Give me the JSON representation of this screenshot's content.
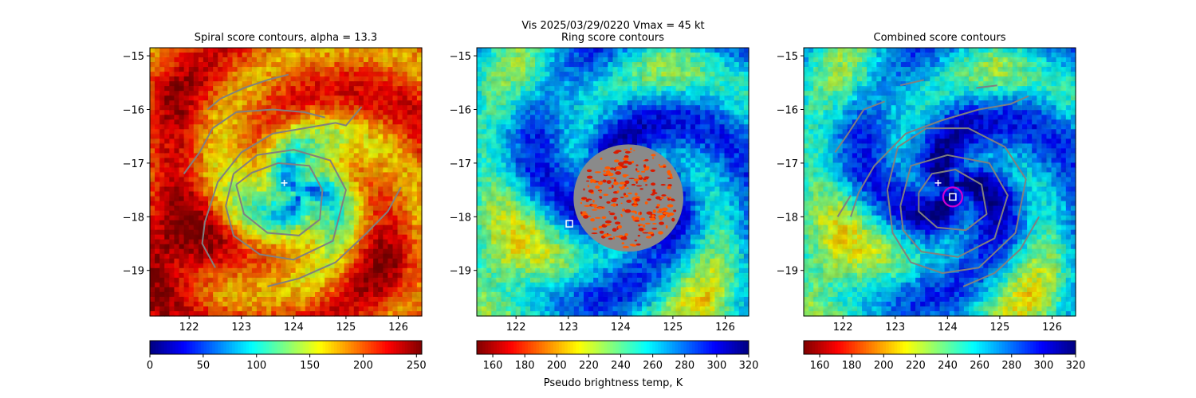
{
  "suptitle_line1": "Vis  2025/03/29/0220    Vmax = 45 kt",
  "colorbar_label": "Pseudo brightness temp, K",
  "chart_data": [
    {
      "type": "heatmap",
      "title": "Spiral score contours, alpha = 13.3",
      "xlim": [
        121.25,
        126.45
      ],
      "ylim": [
        -19.85,
        -14.85
      ],
      "xticks": [
        122,
        123,
        124,
        125,
        126
      ],
      "xtick_labels": [
        "122",
        "123",
        "124",
        "125",
        "126"
      ],
      "yticks": [
        -15,
        -16,
        -17,
        -18,
        -19
      ],
      "ytick_labels": [
        "−15",
        "−16",
        "−17",
        "−18",
        "−19"
      ],
      "colormap": "jet",
      "cmap_reversed": false,
      "colorbar_range": [
        0,
        255
      ],
      "colorbar_ticks": [
        0,
        50,
        100,
        150,
        200,
        250
      ],
      "colorbar_tick_labels": [
        "0",
        "50",
        "100",
        "150",
        "200",
        "250"
      ],
      "storm_center": {
        "lon": 123.82,
        "lat": -17.37
      },
      "contours": [
        [
          [
            122.9,
            -17.4
          ],
          [
            123.2,
            -17.18
          ],
          [
            123.7,
            -17.0
          ],
          [
            124.3,
            -17.05
          ],
          [
            124.55,
            -17.5
          ],
          [
            124.5,
            -18.05
          ],
          [
            124.1,
            -18.35
          ],
          [
            123.5,
            -18.3
          ],
          [
            123.05,
            -17.95
          ],
          [
            122.9,
            -17.4
          ]
        ],
        [
          [
            122.7,
            -17.8
          ],
          [
            122.85,
            -17.2
          ],
          [
            123.3,
            -16.85
          ],
          [
            124.0,
            -16.75
          ],
          [
            124.7,
            -16.95
          ],
          [
            125.0,
            -17.5
          ],
          [
            124.75,
            -18.45
          ],
          [
            124.0,
            -18.8
          ],
          [
            123.35,
            -18.7
          ],
          [
            122.85,
            -18.35
          ],
          [
            122.7,
            -17.8
          ]
        ],
        [
          [
            122.35,
            -16.0
          ],
          [
            122.6,
            -15.8
          ],
          [
            123.05,
            -15.6
          ],
          [
            123.5,
            -15.45
          ],
          [
            123.9,
            -15.35
          ]
        ],
        [
          [
            121.9,
            -17.2
          ],
          [
            122.2,
            -16.8
          ],
          [
            122.45,
            -16.35
          ],
          [
            122.9,
            -16.05
          ],
          [
            123.6,
            -16.0
          ],
          [
            124.2,
            -16.05
          ],
          [
            124.6,
            -16.15
          ]
        ],
        [
          [
            122.3,
            -18.1
          ],
          [
            122.55,
            -17.35
          ],
          [
            123.0,
            -16.8
          ],
          [
            123.6,
            -16.45
          ],
          [
            124.2,
            -16.35
          ],
          [
            124.8,
            -16.25
          ],
          [
            125.0,
            -16.3
          ],
          [
            125.3,
            -15.95
          ]
        ],
        [
          [
            122.3,
            -18.1
          ],
          [
            122.25,
            -18.5
          ],
          [
            122.5,
            -18.95
          ]
        ],
        [
          [
            123.5,
            -19.3
          ],
          [
            124.1,
            -19.15
          ],
          [
            124.8,
            -18.85
          ],
          [
            125.4,
            -18.3
          ],
          [
            125.8,
            -17.9
          ],
          [
            126.05,
            -17.45
          ]
        ]
      ]
    },
    {
      "type": "heatmap",
      "title": "Ring score contours",
      "xlim": [
        121.25,
        126.45
      ],
      "ylim": [
        -19.85,
        -14.85
      ],
      "xticks": [
        122,
        123,
        124,
        125,
        126
      ],
      "xtick_labels": [
        "122",
        "123",
        "124",
        "125",
        "126"
      ],
      "yticks": [
        -15,
        -16,
        -17,
        -18,
        -19
      ],
      "ytick_labels": [
        "−15",
        "−16",
        "−17",
        "−18",
        "−19"
      ],
      "colormap": "jet_r",
      "cmap_reversed": true,
      "colorbar_range": [
        150,
        320
      ],
      "colorbar_ticks": [
        160,
        180,
        200,
        220,
        240,
        260,
        280,
        300,
        320
      ],
      "colorbar_tick_labels": [
        "160",
        "180",
        "200",
        "220",
        "240",
        "260",
        "280",
        "300",
        "320"
      ],
      "ring_center": {
        "lon": 123.02,
        "lat": -18.13
      },
      "ring_blob": {
        "lon": 124.15,
        "lat": -17.65,
        "rx": 1.05,
        "ry": 1.0
      }
    },
    {
      "type": "heatmap",
      "title": "Combined score contours",
      "xlim": [
        121.25,
        126.45
      ],
      "ylim": [
        -19.85,
        -14.85
      ],
      "xticks": [
        122,
        123,
        124,
        125,
        126
      ],
      "xtick_labels": [
        "122",
        "123",
        "124",
        "125",
        "126"
      ],
      "yticks": [
        -15,
        -16,
        -17,
        -18,
        -19
      ],
      "ytick_labels": [
        "−15",
        "−16",
        "−17",
        "−18",
        "−19"
      ],
      "colormap": "jet_r",
      "cmap_reversed": true,
      "colorbar_range": [
        150,
        320
      ],
      "colorbar_ticks": [
        160,
        180,
        200,
        220,
        240,
        260,
        280,
        300,
        320
      ],
      "colorbar_tick_labels": [
        "160",
        "180",
        "200",
        "220",
        "240",
        "260",
        "280",
        "300",
        "320"
      ],
      "storm_center": {
        "lon": 123.82,
        "lat": -17.37
      },
      "combined_center": {
        "lon": 124.1,
        "lat": -17.63
      },
      "contours": [
        [
          [
            123.45,
            -17.55
          ],
          [
            123.7,
            -17.2
          ],
          [
            124.15,
            -17.12
          ],
          [
            124.65,
            -17.4
          ],
          [
            124.75,
            -17.95
          ],
          [
            124.35,
            -18.25
          ],
          [
            123.8,
            -18.2
          ],
          [
            123.45,
            -17.9
          ],
          [
            123.45,
            -17.55
          ]
        ],
        [
          [
            123.1,
            -17.8
          ],
          [
            123.3,
            -17.05
          ],
          [
            124.0,
            -16.85
          ],
          [
            124.8,
            -17.0
          ],
          [
            125.15,
            -17.6
          ],
          [
            124.9,
            -18.4
          ],
          [
            124.2,
            -18.75
          ],
          [
            123.5,
            -18.65
          ],
          [
            123.15,
            -18.25
          ],
          [
            123.1,
            -17.8
          ]
        ],
        [
          [
            122.85,
            -17.5
          ],
          [
            123.05,
            -16.7
          ],
          [
            123.6,
            -16.35
          ],
          [
            124.4,
            -16.35
          ],
          [
            125.1,
            -16.7
          ],
          [
            125.5,
            -17.3
          ],
          [
            125.3,
            -18.3
          ],
          [
            124.6,
            -18.95
          ],
          [
            123.9,
            -19.05
          ],
          [
            123.3,
            -18.85
          ],
          [
            122.95,
            -18.3
          ],
          [
            122.85,
            -17.5
          ]
        ],
        [
          [
            121.85,
            -16.8
          ],
          [
            122.1,
            -16.45
          ],
          [
            122.4,
            -16.0
          ],
          [
            122.8,
            -15.85
          ]
        ],
        [
          [
            122.15,
            -18.0
          ],
          [
            122.3,
            -17.55
          ],
          [
            122.6,
            -17.05
          ],
          [
            123.2,
            -16.45
          ],
          [
            123.9,
            -16.2
          ],
          [
            124.6,
            -16.0
          ],
          [
            125.2,
            -15.9
          ],
          [
            125.55,
            -15.75
          ]
        ],
        [
          [
            123.1,
            -15.55
          ],
          [
            123.55,
            -15.45
          ]
        ],
        [
          [
            124.55,
            -15.6
          ],
          [
            124.95,
            -15.55
          ]
        ],
        [
          [
            121.9,
            -18.0
          ],
          [
            122.15,
            -17.6
          ]
        ],
        [
          [
            124.3,
            -19.3
          ],
          [
            124.9,
            -19.05
          ],
          [
            125.4,
            -18.6
          ],
          [
            125.75,
            -18.0
          ]
        ]
      ]
    }
  ]
}
